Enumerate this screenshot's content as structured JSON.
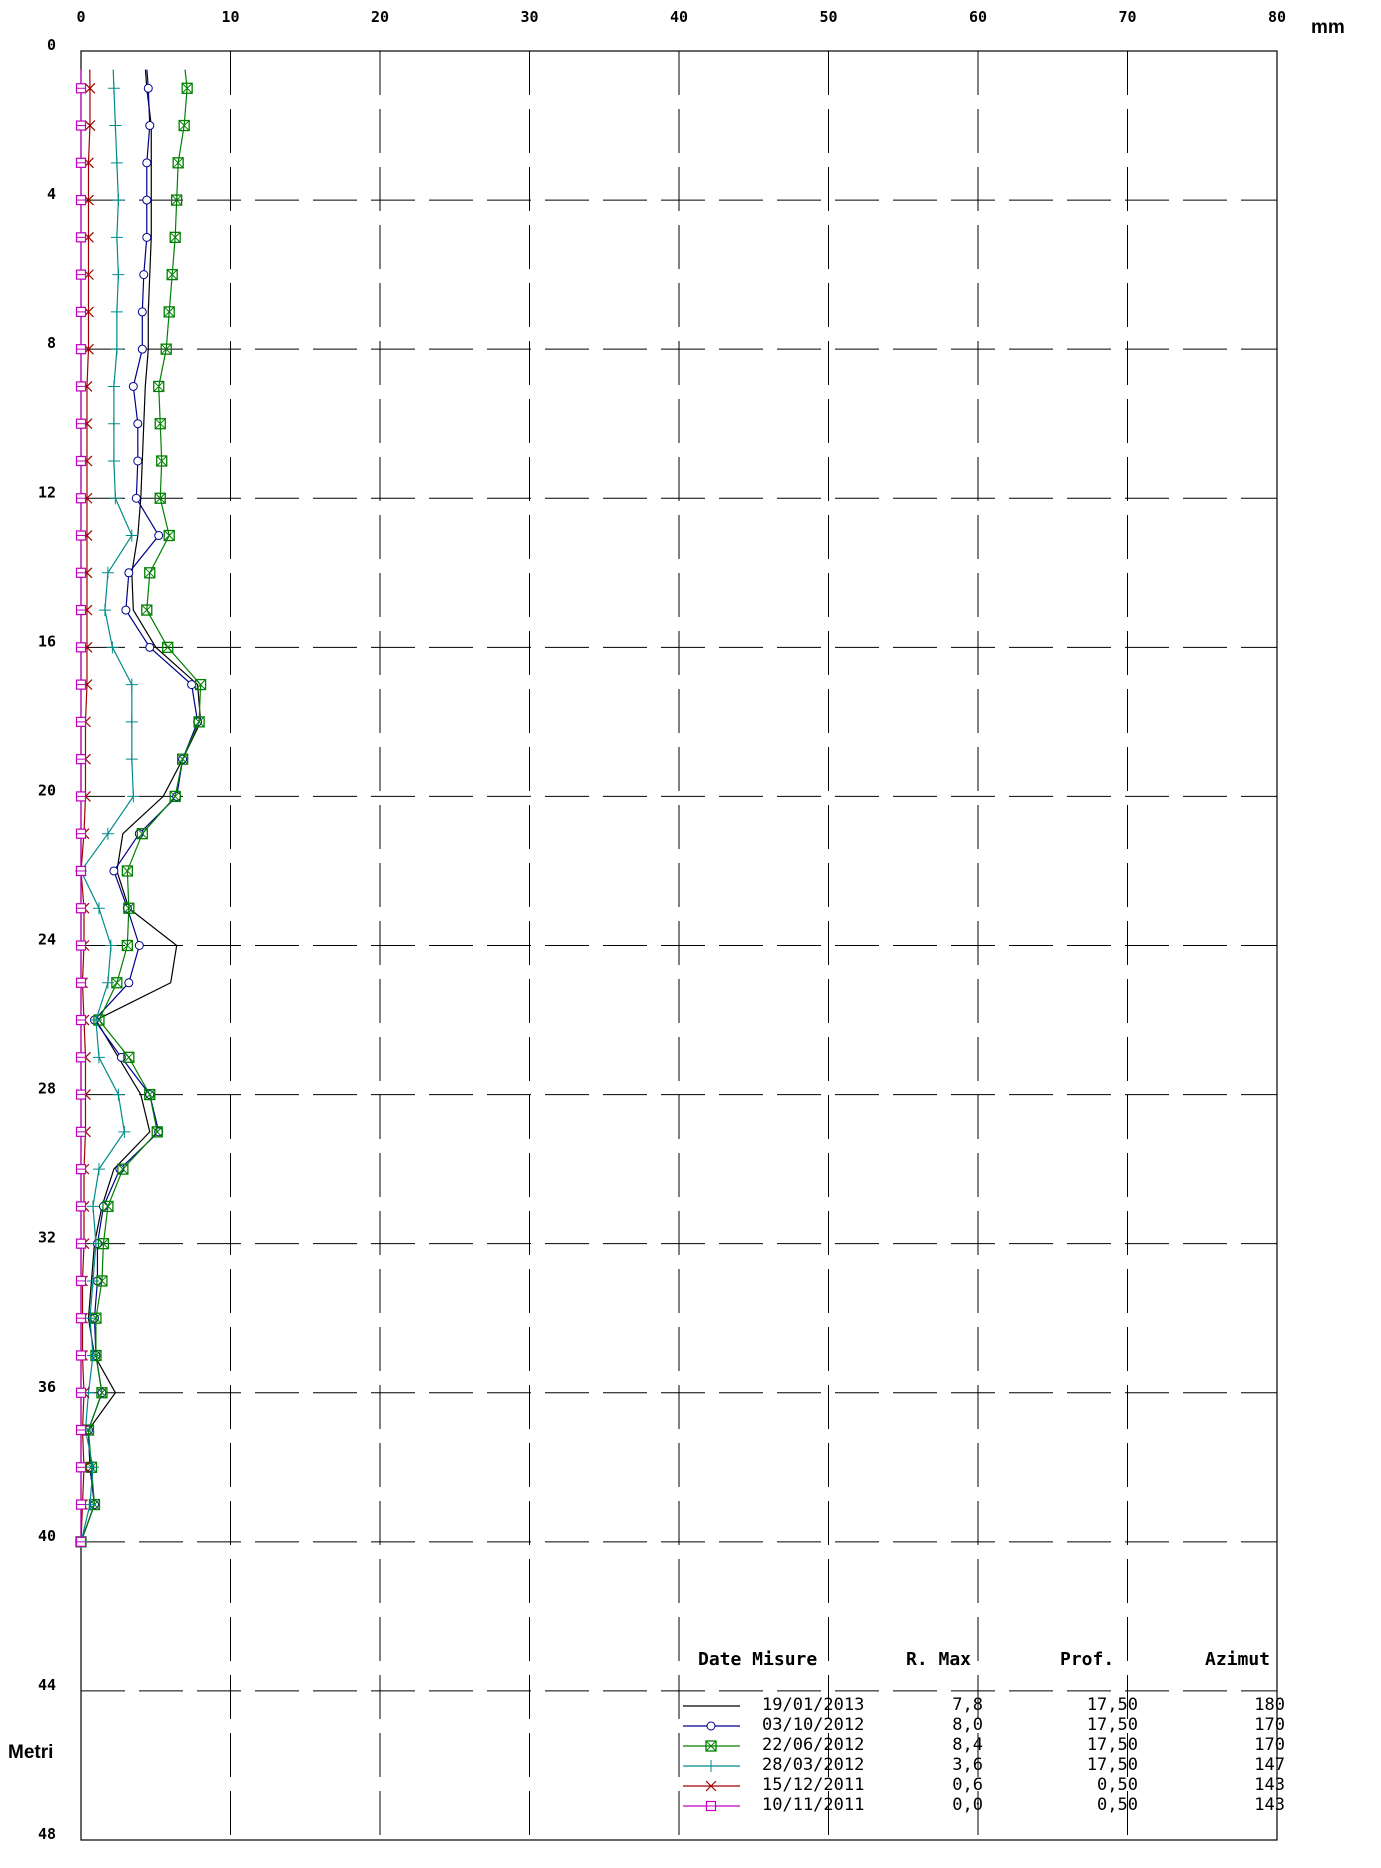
{
  "chart_data": {
    "type": "line",
    "xlabel": "mm",
    "ylabel": "Metri",
    "xlim": [
      0,
      80
    ],
    "ylim": [
      0,
      48
    ],
    "x_ticks": [
      "0",
      "10",
      "20",
      "30",
      "40",
      "50",
      "60",
      "70",
      "80"
    ],
    "y_ticks": [
      "0",
      "4",
      "8",
      "12",
      "16",
      "20",
      "24",
      "28",
      "32",
      "36",
      "40",
      "44",
      "48"
    ],
    "grid": true,
    "legend": {
      "position": "bottom-right",
      "headers": [
        "Date Misure",
        "R. Max",
        "Prof.",
        "Azimut"
      ],
      "rows": [
        {
          "date": "19/01/2013",
          "rmax": "7,8",
          "prof": "17,50",
          "azimut": "180"
        },
        {
          "date": "03/10/2012",
          "rmax": "8,0",
          "prof": "17,50",
          "azimut": "170"
        },
        {
          "date": "22/06/2012",
          "rmax": "8,4",
          "prof": "17,50",
          "azimut": "170"
        },
        {
          "date": "28/03/2012",
          "rmax": "3,6",
          "prof": "17,50",
          "azimut": "147"
        },
        {
          "date": "15/12/2011",
          "rmax": "0,6",
          "prof": "0,50",
          "azimut": "143"
        },
        {
          "date": "10/11/2011",
          "rmax": "0,0",
          "prof": "0,50",
          "azimut": "143"
        }
      ]
    },
    "depths": [
      1,
      2,
      3,
      4,
      5,
      6,
      7,
      8,
      9,
      10,
      11,
      12,
      13,
      14,
      15,
      16,
      17,
      18,
      19,
      20,
      21,
      22,
      23,
      24,
      25,
      26,
      27,
      28,
      29,
      30,
      31,
      32,
      33,
      34,
      35,
      36,
      37,
      38,
      39,
      40
    ],
    "series": [
      {
        "color": "#000000",
        "marker": "none",
        "values": [
          4.4,
          4.7,
          4.7,
          4.7,
          4.7,
          4.6,
          4.5,
          4.5,
          4.3,
          4.2,
          4.1,
          4.0,
          3.8,
          3.4,
          3.5,
          5.0,
          7.8,
          8.0,
          6.8,
          5.5,
          2.8,
          2.4,
          3.2,
          6.4,
          6.0,
          1.0,
          2.5,
          4.0,
          4.6,
          2.2,
          1.4,
          0.9,
          0.7,
          0.5,
          0.9,
          2.3,
          0.5,
          0.6,
          0.9,
          0.0
        ]
      },
      {
        "color": "#00008b",
        "marker": "circle",
        "values": [
          4.5,
          4.6,
          4.4,
          4.4,
          4.4,
          4.2,
          4.1,
          4.1,
          3.5,
          3.8,
          3.8,
          3.7,
          5.2,
          3.2,
          3.0,
          4.6,
          7.4,
          7.8,
          6.8,
          6.4,
          3.9,
          2.2,
          3.1,
          3.9,
          3.2,
          0.9,
          2.7,
          4.6,
          5.2,
          2.6,
          1.5,
          1.1,
          1.1,
          0.9,
          1.0,
          1.4,
          0.5,
          0.6,
          0.9,
          0.0
        ]
      },
      {
        "color": "#008000",
        "marker": "boxcross",
        "values": [
          7.1,
          6.9,
          6.5,
          6.4,
          6.3,
          6.1,
          5.9,
          5.7,
          5.2,
          5.3,
          5.4,
          5.3,
          5.9,
          4.6,
          4.4,
          5.8,
          8.0,
          7.9,
          6.8,
          6.3,
          4.1,
          3.1,
          3.2,
          3.1,
          2.4,
          1.2,
          3.2,
          4.6,
          5.1,
          2.8,
          1.8,
          1.5,
          1.4,
          1.0,
          1.0,
          1.4,
          0.5,
          0.7,
          0.9,
          0.0
        ]
      },
      {
        "color": "#008b8b",
        "marker": "plus",
        "values": [
          2.2,
          2.3,
          2.4,
          2.5,
          2.4,
          2.5,
          2.4,
          2.4,
          2.2,
          2.2,
          2.2,
          2.3,
          3.4,
          1.8,
          1.6,
          2.1,
          3.4,
          3.4,
          3.4,
          3.5,
          1.8,
          0.0,
          1.2,
          2.0,
          1.8,
          1.0,
          1.2,
          2.5,
          2.9,
          1.2,
          0.8,
          1.0,
          0.8,
          0.6,
          0.8,
          0.5,
          0.3,
          0.8,
          0.6,
          0.0
        ]
      },
      {
        "color": "#a00000",
        "marker": "x",
        "values": [
          0.6,
          0.6,
          0.5,
          0.5,
          0.5,
          0.5,
          0.5,
          0.5,
          0.4,
          0.4,
          0.4,
          0.4,
          0.4,
          0.4,
          0.4,
          0.4,
          0.4,
          0.3,
          0.3,
          0.3,
          0.2,
          0.0,
          0.2,
          0.2,
          0.1,
          0.2,
          0.3,
          0.3,
          0.3,
          0.2,
          0.2,
          0.2,
          0.1,
          0.1,
          0.1,
          0.2,
          0.1,
          0.2,
          0.1,
          0.0
        ]
      },
      {
        "color": "#c000c0",
        "marker": "square",
        "values": [
          0,
          0,
          0,
          0,
          0,
          0,
          0,
          0,
          0,
          0,
          0,
          0,
          0,
          0,
          0,
          0,
          0,
          0,
          0,
          0,
          0,
          0,
          0,
          0,
          0,
          0,
          0,
          0,
          0,
          0,
          0,
          0,
          0,
          0,
          0,
          0,
          0,
          0,
          0,
          0
        ]
      }
    ]
  }
}
